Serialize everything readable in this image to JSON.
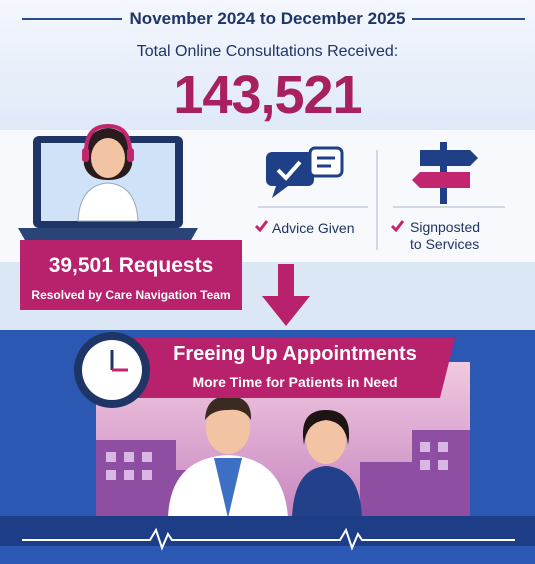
{
  "header": {
    "date_range": "November 2024 to December 2025",
    "subtitle": "Total Online Consultations Received:",
    "total": "143,521"
  },
  "outcomes": [
    {
      "label": "Advice Given"
    },
    {
      "label": "Signposted to Services"
    }
  ],
  "resolved": {
    "title": "39,501 Requests",
    "subtitle": "Resolved by Care Navigation Team"
  },
  "banner": {
    "title": "Freeing Up Appointments",
    "subtitle": "More Time for Patients in Need"
  }
}
